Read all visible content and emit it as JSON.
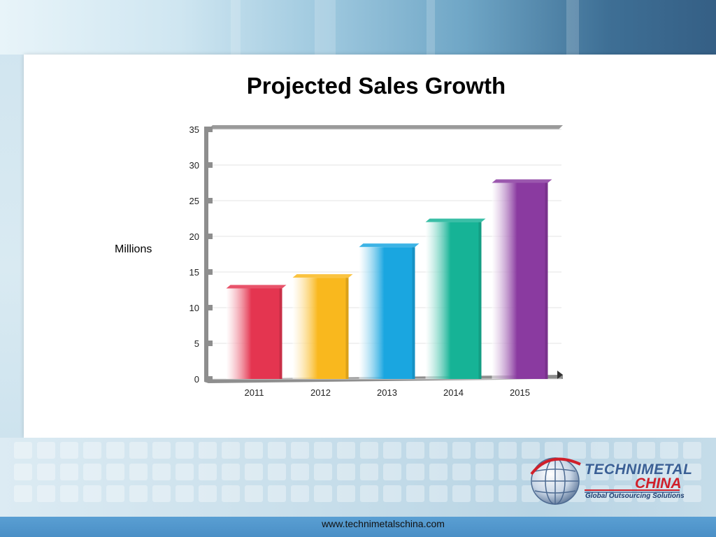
{
  "slide": {
    "title": "Projected Sales Growth",
    "side_label": "Millions",
    "footer_url": "www.technimetalschina.com"
  },
  "logo": {
    "name_line1": "TECHNIMETAL",
    "name_line2": "CHINA",
    "tagline": "Global Outsourcing Solutions",
    "primary_color": "#3a5f95",
    "accent_color": "#d01f2a"
  },
  "chart_data": {
    "type": "bar",
    "title": "Projected Sales Growth",
    "xlabel": "",
    "ylabel": "Millions",
    "categories": [
      "2011",
      "2012",
      "2013",
      "2014",
      "2015"
    ],
    "values": [
      12.7,
      14.2,
      18.5,
      22,
      27.5
    ],
    "ylim": [
      0,
      35
    ],
    "yticks": [
      0,
      5,
      10,
      15,
      20,
      25,
      30,
      35
    ],
    "grid": true,
    "legend": "none",
    "colors": [
      "#e43550",
      "#f9b81e",
      "#1aa6e0",
      "#16b396",
      "#8a3aa0"
    ]
  }
}
